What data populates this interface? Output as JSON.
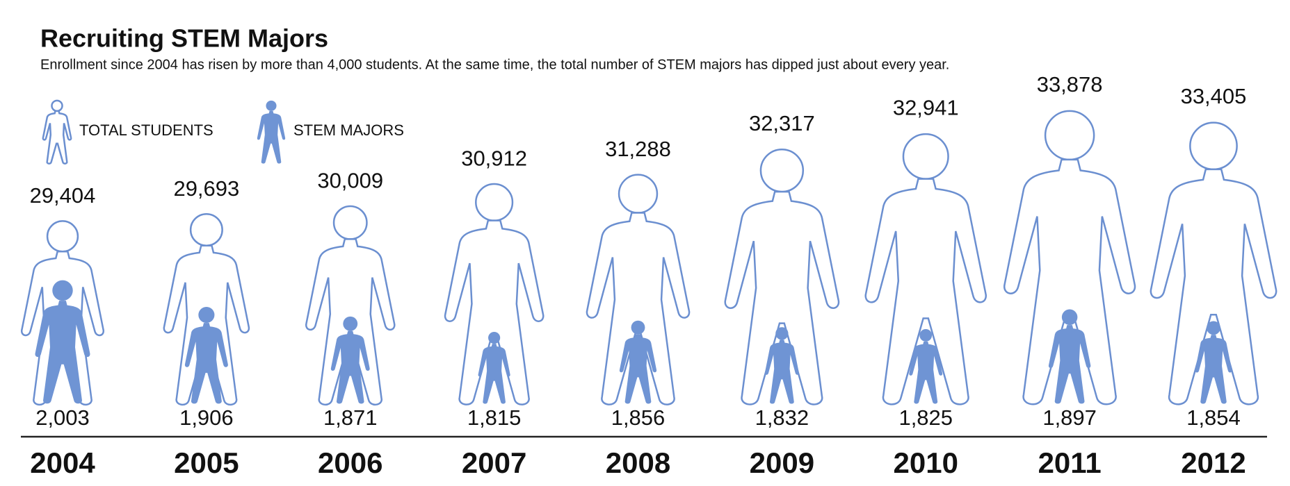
{
  "chart_data": {
    "type": "pictogram",
    "title": "Recruiting STEM Majors",
    "subtitle": "Enrollment since 2004 has risen by more than 4,000 students. At the same time, the total number of STEM majors has dipped just about every year.",
    "categories": [
      "2004",
      "2005",
      "2006",
      "2007",
      "2008",
      "2009",
      "2010",
      "2011",
      "2012"
    ],
    "series": [
      {
        "name": "TOTAL STUDENTS",
        "color": "#6b8fd0",
        "style": "outline",
        "values": [
          29404,
          29693,
          30009,
          30912,
          31288,
          32317,
          32941,
          33878,
          33405
        ],
        "value_labels": [
          "29,404",
          "29,693",
          "30,009",
          "30,912",
          "31,288",
          "32,317",
          "32,941",
          "33,878",
          "33,405"
        ]
      },
      {
        "name": "STEM MAJORS",
        "color": "#6f94d4",
        "style": "filled",
        "values": [
          2003,
          1906,
          1871,
          1815,
          1856,
          1832,
          1825,
          1897,
          1854
        ],
        "value_labels": [
          "2,003",
          "1,906",
          "1,871",
          "1,815",
          "1,856",
          "1,832",
          "1,825",
          "1,897",
          "1,854"
        ]
      }
    ]
  }
}
